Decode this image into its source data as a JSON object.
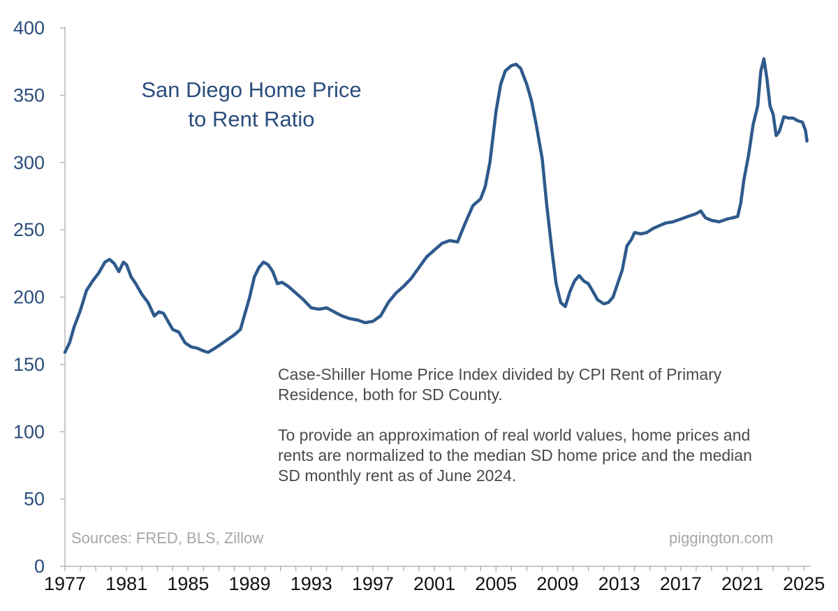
{
  "chart_data": {
    "type": "line",
    "title_line1": "San Diego Home Price",
    "title_line2": "to Rent Ratio",
    "xlabel": "",
    "ylabel": "",
    "xlim": [
      1977,
      2025.4
    ],
    "ylim": [
      0,
      400
    ],
    "grid": false,
    "y_ticks": [
      0,
      50,
      100,
      150,
      200,
      250,
      300,
      350,
      400
    ],
    "x_ticks": [
      1977,
      1981,
      1985,
      1989,
      1993,
      1997,
      2001,
      2005,
      2009,
      2013,
      2017,
      2021,
      2025
    ],
    "series": [
      {
        "name": "San Diego Home Price to Rent Ratio",
        "color": "#2e5a8c",
        "x": [
          1977.0,
          1977.3,
          1977.6,
          1978.0,
          1978.4,
          1978.8,
          1979.2,
          1979.6,
          1979.9,
          1980.2,
          1980.5,
          1980.8,
          1981.0,
          1981.3,
          1981.6,
          1982.0,
          1982.4,
          1982.8,
          1983.1,
          1983.4,
          1983.7,
          1984.0,
          1984.4,
          1984.8,
          1985.2,
          1985.6,
          1986.0,
          1986.3,
          1986.6,
          1987.0,
          1987.5,
          1988.0,
          1988.4,
          1988.7,
          1989.0,
          1989.3,
          1989.6,
          1989.9,
          1990.2,
          1990.5,
          1990.8,
          1991.1,
          1991.5,
          1992.0,
          1992.5,
          1993.0,
          1993.5,
          1994.0,
          1994.5,
          1995.0,
          1995.5,
          1996.0,
          1996.5,
          1997.0,
          1997.5,
          1998.0,
          1998.5,
          1999.0,
          1999.5,
          2000.0,
          2000.5,
          2001.0,
          2001.5,
          2002.0,
          2002.5,
          2003.0,
          2003.5,
          2004.0,
          2004.3,
          2004.6,
          2005.0,
          2005.3,
          2005.6,
          2006.0,
          2006.3,
          2006.6,
          2007.0,
          2007.3,
          2007.6,
          2008.0,
          2008.3,
          2008.6,
          2008.9,
          2009.2,
          2009.5,
          2009.8,
          2010.1,
          2010.4,
          2010.7,
          2011.0,
          2011.3,
          2011.6,
          2012.0,
          2012.3,
          2012.6,
          2012.9,
          2013.2,
          2013.5,
          2013.8,
          2014.0,
          2014.4,
          2014.8,
          2015.2,
          2015.6,
          2016.0,
          2016.5,
          2017.0,
          2017.5,
          2018.0,
          2018.3,
          2018.6,
          2019.0,
          2019.5,
          2020.0,
          2020.4,
          2020.7,
          2020.9,
          2021.1,
          2021.4,
          2021.7,
          2022.0,
          2022.2,
          2022.4,
          2022.6,
          2022.8,
          2023.0,
          2023.2,
          2023.4,
          2023.7,
          2024.0,
          2024.3,
          2024.6,
          2024.9,
          2025.1,
          2025.2
        ],
        "values": [
          159,
          166,
          178,
          190,
          205,
          212,
          218,
          226,
          228,
          225,
          219,
          226,
          224,
          215,
          210,
          202,
          196,
          186,
          189,
          188,
          182,
          176,
          174,
          166,
          163,
          162,
          160,
          159,
          161,
          164,
          168,
          172,
          176,
          188,
          200,
          215,
          222,
          226,
          224,
          219,
          210,
          211,
          208,
          203,
          198,
          192,
          191,
          192,
          189,
          186,
          184,
          183,
          181,
          182,
          186,
          196,
          203,
          208,
          214,
          222,
          230,
          235,
          240,
          242,
          241,
          255,
          268,
          273,
          282,
          300,
          338,
          358,
          368,
          372,
          373,
          370,
          358,
          346,
          329,
          303,
          268,
          238,
          210,
          196,
          193,
          204,
          212,
          216,
          212,
          210,
          204,
          198,
          195,
          196,
          200,
          210,
          220,
          238,
          243,
          248,
          247,
          248,
          251,
          253,
          255,
          256,
          258,
          260,
          262,
          264,
          259,
          257,
          256,
          258,
          259,
          260,
          270,
          287,
          305,
          328,
          342,
          368,
          377,
          362,
          342,
          336,
          320,
          323,
          334,
          333,
          333,
          331,
          330,
          324,
          316
        ]
      }
    ],
    "annotation_line1": "Case-Shiller Home Price Index divided by CPI Rent of Primary Residence, both for SD County.",
    "annotation_line2": "To provide an approximation of real world values, home prices and rents are normalized to the median SD home price and the median SD monthly rent as of June 2024.",
    "source": "Sources: FRED, BLS, Zillow",
    "credit": "piggington.com"
  }
}
